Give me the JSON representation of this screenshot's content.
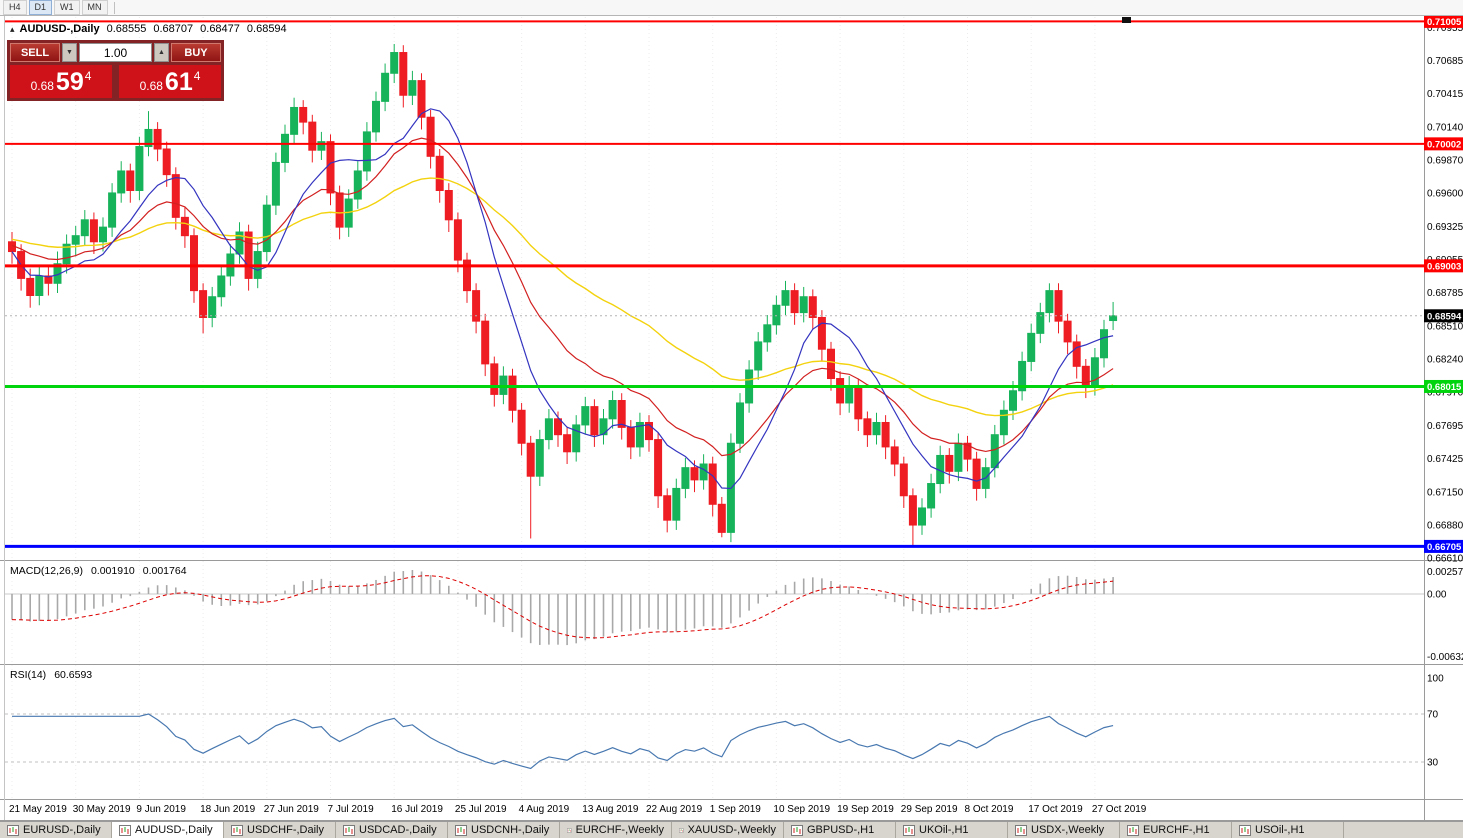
{
  "toolbar": {
    "timeframes": [
      {
        "label": "H4",
        "active": false
      },
      {
        "label": "D1",
        "active": true
      },
      {
        "label": "W1",
        "active": false
      },
      {
        "label": "MN",
        "active": false
      }
    ]
  },
  "icons": {
    "collapse_triangle": "▴",
    "volume_decrease": "▼",
    "volume_increase": "▲"
  },
  "chart": {
    "title": {
      "symbol": "AUDUSD-,Daily",
      "open": "0.68555",
      "high": "0.68707",
      "low": "0.68477",
      "close": "0.68594"
    },
    "trade_panel": {
      "sell_label": "SELL",
      "buy_label": "BUY",
      "volume": "1.00",
      "sell_price": {
        "prefix": "0.68",
        "big": "59",
        "pip": "4"
      },
      "buy_price": {
        "prefix": "0.68",
        "big": "61",
        "pip": "4"
      }
    },
    "hlines": [
      {
        "value": 0.71005,
        "label": "0.71005",
        "color": "#ff0000",
        "width": 2
      },
      {
        "value": 0.70002,
        "label": "0.70002",
        "color": "#ff0000",
        "width": 2
      },
      {
        "value": 0.69003,
        "label": "0.69003",
        "color": "#ff0000",
        "width": 3
      },
      {
        "value": 0.68015,
        "label": "0.68015",
        "color": "#00d40c",
        "width": 3
      },
      {
        "value": 0.66705,
        "label": "0.66705",
        "color": "#0000ff",
        "width": 3
      }
    ],
    "current_price": {
      "value": 0.68594,
      "label": "0.68594",
      "badge_color": "#000000"
    },
    "price_axis_labels": [
      "0.70955",
      "0.70685",
      "0.70415",
      "0.70140",
      "0.69870",
      "0.69600",
      "0.69325",
      "0.69055",
      "0.68785",
      "0.68510",
      "0.68240",
      "0.67970",
      "0.67695",
      "0.67425",
      "0.67150",
      "0.66880",
      "0.66610"
    ]
  },
  "colors": {
    "up": "#17b35a",
    "down": "#ee1c23",
    "ma_fast": "#3434c0",
    "ma_mid": "#d22020",
    "ma_slow": "#f3d20e",
    "macd_hist": "#a8a8a8",
    "macd_signal": "#dd0000",
    "rsi": "#4878b0"
  },
  "chart_data": {
    "type": "candlestick",
    "symbol": "AUDUSD",
    "timeframe": "Daily",
    "ylim": [
      0.6661,
      0.71
    ],
    "label_every": 7,
    "x_labels": [
      "21 May 2019",
      "30 May 2019",
      "9 Jun 2019",
      "18 Jun 2019",
      "27 Jun 2019",
      "7 Jul 2019",
      "16 Jul 2019",
      "25 Jul 2019",
      "4 Aug 2019",
      "13 Aug 2019",
      "22 Aug 2019",
      "1 Sep 2019",
      "10 Sep 2019",
      "19 Sep 2019",
      "29 Sep 2019",
      "8 Oct 2019",
      "17 Oct 2019",
      "27 Oct 2019"
    ],
    "ma_estimated_periods": {
      "fast": 9,
      "mid": 18,
      "slow": 45
    },
    "candles": [
      [
        0.692,
        0.6928,
        0.6902,
        0.6912
      ],
      [
        0.6912,
        0.6918,
        0.688,
        0.689
      ],
      [
        0.689,
        0.6898,
        0.6866,
        0.6876
      ],
      [
        0.6876,
        0.69,
        0.6868,
        0.6892
      ],
      [
        0.6892,
        0.6901,
        0.6876,
        0.6886
      ],
      [
        0.6886,
        0.6912,
        0.6878,
        0.6902
      ],
      [
        0.6902,
        0.6926,
        0.6894,
        0.6918
      ],
      [
        0.6918,
        0.6933,
        0.6908,
        0.6925
      ],
      [
        0.6925,
        0.6946,
        0.6917,
        0.6938
      ],
      [
        0.6938,
        0.6944,
        0.691,
        0.692
      ],
      [
        0.692,
        0.694,
        0.6912,
        0.6932
      ],
      [
        0.6932,
        0.6968,
        0.6924,
        0.696
      ],
      [
        0.696,
        0.6986,
        0.6952,
        0.6978
      ],
      [
        0.6978,
        0.6984,
        0.6952,
        0.6962
      ],
      [
        0.6962,
        0.7006,
        0.6954,
        0.6998
      ],
      [
        0.6998,
        0.7027,
        0.699,
        0.7012
      ],
      [
        0.7012,
        0.7018,
        0.6986,
        0.6996
      ],
      [
        0.6996,
        0.7002,
        0.6965,
        0.6975
      ],
      [
        0.6975,
        0.6981,
        0.693,
        0.694
      ],
      [
        0.694,
        0.6948,
        0.6915,
        0.6925
      ],
      [
        0.6925,
        0.6931,
        0.687,
        0.688
      ],
      [
        0.688,
        0.6886,
        0.6845,
        0.6858
      ],
      [
        0.6858,
        0.6883,
        0.685,
        0.6875
      ],
      [
        0.6875,
        0.69,
        0.6867,
        0.6892
      ],
      [
        0.6892,
        0.6918,
        0.6884,
        0.691
      ],
      [
        0.691,
        0.6936,
        0.6902,
        0.6928
      ],
      [
        0.6928,
        0.6934,
        0.688,
        0.689
      ],
      [
        0.689,
        0.692,
        0.6882,
        0.6912
      ],
      [
        0.6912,
        0.6958,
        0.6904,
        0.695
      ],
      [
        0.695,
        0.6993,
        0.6942,
        0.6985
      ],
      [
        0.6985,
        0.7016,
        0.6977,
        0.7008
      ],
      [
        0.7008,
        0.7038,
        0.7,
        0.703
      ],
      [
        0.703,
        0.7036,
        0.7008,
        0.7018
      ],
      [
        0.7018,
        0.7024,
        0.6985,
        0.6995
      ],
      [
        0.6995,
        0.701,
        0.6987,
        0.7002
      ],
      [
        0.7002,
        0.7008,
        0.695,
        0.696
      ],
      [
        0.696,
        0.6966,
        0.6922,
        0.6932
      ],
      [
        0.6932,
        0.6963,
        0.6924,
        0.6955
      ],
      [
        0.6955,
        0.6986,
        0.6947,
        0.6978
      ],
      [
        0.6978,
        0.7018,
        0.697,
        0.701
      ],
      [
        0.701,
        0.7043,
        0.7002,
        0.7035
      ],
      [
        0.7035,
        0.7066,
        0.7027,
        0.7058
      ],
      [
        0.7058,
        0.7082,
        0.705,
        0.7075
      ],
      [
        0.7075,
        0.7081,
        0.703,
        0.704
      ],
      [
        0.704,
        0.706,
        0.7032,
        0.7052
      ],
      [
        0.7052,
        0.7058,
        0.7012,
        0.7022
      ],
      [
        0.7022,
        0.7028,
        0.698,
        0.699
      ],
      [
        0.699,
        0.6996,
        0.6952,
        0.6962
      ],
      [
        0.6962,
        0.6968,
        0.6928,
        0.6938
      ],
      [
        0.6938,
        0.6944,
        0.6895,
        0.6905
      ],
      [
        0.6905,
        0.6911,
        0.687,
        0.688
      ],
      [
        0.688,
        0.6886,
        0.6845,
        0.6855
      ],
      [
        0.6855,
        0.6861,
        0.681,
        0.682
      ],
      [
        0.682,
        0.6826,
        0.6785,
        0.6795
      ],
      [
        0.6795,
        0.6818,
        0.6787,
        0.681
      ],
      [
        0.681,
        0.6816,
        0.6772,
        0.6782
      ],
      [
        0.6782,
        0.6788,
        0.6745,
        0.6755
      ],
      [
        0.6755,
        0.6761,
        0.6677,
        0.6728
      ],
      [
        0.6728,
        0.6766,
        0.672,
        0.6758
      ],
      [
        0.6758,
        0.6783,
        0.675,
        0.6775
      ],
      [
        0.6775,
        0.6781,
        0.6752,
        0.6762
      ],
      [
        0.6762,
        0.6768,
        0.6738,
        0.6748
      ],
      [
        0.6748,
        0.6778,
        0.674,
        0.677
      ],
      [
        0.677,
        0.6793,
        0.6762,
        0.6785
      ],
      [
        0.6785,
        0.6791,
        0.6752,
        0.6762
      ],
      [
        0.6762,
        0.6783,
        0.6754,
        0.6775
      ],
      [
        0.6775,
        0.6798,
        0.6767,
        0.679
      ],
      [
        0.679,
        0.6796,
        0.6758,
        0.6768
      ],
      [
        0.6768,
        0.6774,
        0.6742,
        0.6752
      ],
      [
        0.6752,
        0.678,
        0.6744,
        0.6772
      ],
      [
        0.6772,
        0.6778,
        0.6748,
        0.6758
      ],
      [
        0.6758,
        0.6764,
        0.6702,
        0.6712
      ],
      [
        0.6712,
        0.6718,
        0.6682,
        0.6692
      ],
      [
        0.6692,
        0.6726,
        0.6684,
        0.6718
      ],
      [
        0.6718,
        0.6743,
        0.671,
        0.6735
      ],
      [
        0.6735,
        0.6741,
        0.6715,
        0.6725
      ],
      [
        0.6725,
        0.6746,
        0.6717,
        0.6738
      ],
      [
        0.6738,
        0.6744,
        0.6695,
        0.6705
      ],
      [
        0.6705,
        0.6711,
        0.6678,
        0.6682
      ],
      [
        0.6682,
        0.6763,
        0.6674,
        0.6755
      ],
      [
        0.6755,
        0.6796,
        0.6747,
        0.6788
      ],
      [
        0.6788,
        0.6823,
        0.678,
        0.6815
      ],
      [
        0.6815,
        0.6846,
        0.6807,
        0.6838
      ],
      [
        0.6838,
        0.686,
        0.683,
        0.6852
      ],
      [
        0.6852,
        0.6876,
        0.6844,
        0.6868
      ],
      [
        0.6868,
        0.6888,
        0.686,
        0.688
      ],
      [
        0.688,
        0.6886,
        0.6852,
        0.6862
      ],
      [
        0.6862,
        0.6883,
        0.6854,
        0.6875
      ],
      [
        0.6875,
        0.6881,
        0.6848,
        0.6858
      ],
      [
        0.6858,
        0.6864,
        0.6822,
        0.6832
      ],
      [
        0.6832,
        0.6838,
        0.6798,
        0.6808
      ],
      [
        0.6808,
        0.6814,
        0.6778,
        0.6788
      ],
      [
        0.6788,
        0.681,
        0.678,
        0.6802
      ],
      [
        0.6802,
        0.6808,
        0.6765,
        0.6775
      ],
      [
        0.6775,
        0.6781,
        0.6752,
        0.6762
      ],
      [
        0.6762,
        0.678,
        0.6754,
        0.6772
      ],
      [
        0.6772,
        0.6778,
        0.6742,
        0.6752
      ],
      [
        0.6752,
        0.6758,
        0.6728,
        0.6738
      ],
      [
        0.6738,
        0.6744,
        0.6702,
        0.6712
      ],
      [
        0.6712,
        0.6718,
        0.6671,
        0.6688
      ],
      [
        0.6688,
        0.671,
        0.668,
        0.6702
      ],
      [
        0.6702,
        0.673,
        0.6694,
        0.6722
      ],
      [
        0.6722,
        0.6753,
        0.6714,
        0.6745
      ],
      [
        0.6745,
        0.6751,
        0.6722,
        0.6732
      ],
      [
        0.6732,
        0.6763,
        0.6724,
        0.6755
      ],
      [
        0.6755,
        0.6761,
        0.6732,
        0.6742
      ],
      [
        0.6742,
        0.6748,
        0.6708,
        0.6718
      ],
      [
        0.6718,
        0.6743,
        0.671,
        0.6735
      ],
      [
        0.6735,
        0.677,
        0.6727,
        0.6762
      ],
      [
        0.6762,
        0.679,
        0.6754,
        0.6782
      ],
      [
        0.6782,
        0.6806,
        0.6774,
        0.6798
      ],
      [
        0.6798,
        0.683,
        0.679,
        0.6822
      ],
      [
        0.6822,
        0.6853,
        0.6814,
        0.6845
      ],
      [
        0.6845,
        0.687,
        0.6837,
        0.6862
      ],
      [
        0.6862,
        0.6886,
        0.6854,
        0.688
      ],
      [
        0.688,
        0.6886,
        0.6845,
        0.6855
      ],
      [
        0.6855,
        0.6861,
        0.6828,
        0.6838
      ],
      [
        0.6838,
        0.6844,
        0.6808,
        0.6818
      ],
      [
        0.6818,
        0.6824,
        0.6792,
        0.6802
      ],
      [
        0.6802,
        0.6833,
        0.6794,
        0.6825
      ],
      [
        0.6825,
        0.6856,
        0.6817,
        0.6848
      ],
      [
        0.68555,
        0.68707,
        0.68477,
        0.68594
      ]
    ]
  },
  "macd": {
    "label": "MACD(12,26,9)",
    "value1": "0.001910",
    "value2": "0.001764",
    "params": [
      12,
      26,
      9
    ],
    "axis": [
      "0.002574",
      "0.00",
      "-0.006326"
    ]
  },
  "rsi": {
    "label": "RSI(14)",
    "value": "60.6593",
    "period": 14,
    "levels": [
      70,
      30
    ],
    "axis": [
      "100",
      "70",
      "30"
    ]
  },
  "tabs": [
    {
      "label": "EURUSD-,Daily",
      "active": false
    },
    {
      "label": "AUDUSD-,Daily",
      "active": true
    },
    {
      "label": "USDCHF-,Daily",
      "active": false
    },
    {
      "label": "USDCAD-,Daily",
      "active": false
    },
    {
      "label": "USDCNH-,Daily",
      "active": false
    },
    {
      "label": "EURCHF-,Weekly",
      "active": false
    },
    {
      "label": "XAUUSD-,Weekly",
      "active": false
    },
    {
      "label": "GBPUSD-,H1",
      "active": false
    },
    {
      "label": "UKOil-,H1",
      "active": false
    },
    {
      "label": "USDX-,Weekly",
      "active": false
    },
    {
      "label": "EURCHF-,H1",
      "active": false
    },
    {
      "label": "USOil-,H1",
      "active": false
    }
  ]
}
